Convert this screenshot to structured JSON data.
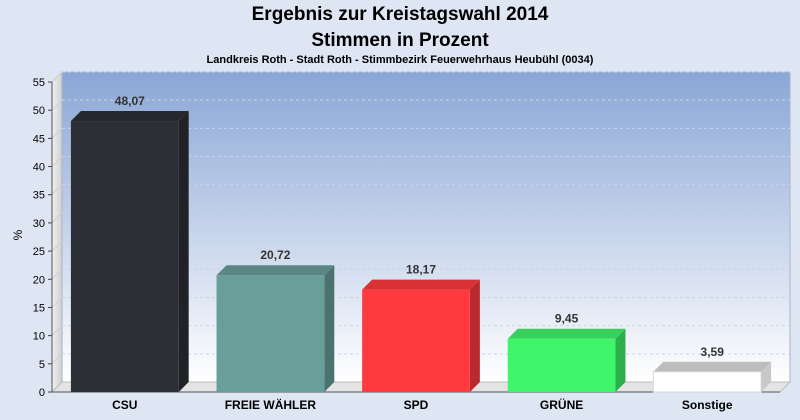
{
  "title": "Ergebnis zur Kreistagswahl 2014",
  "subtitle": "Stimmen in Prozent",
  "description": "Landkreis Roth - Stadt Roth - Stimmbezirk Feuerwehrhaus Heubühl (0034)",
  "chart_data": {
    "type": "bar",
    "categories": [
      "CSU",
      "FREIE WÄHLER",
      "SPD",
      "GRÜNE",
      "Sonstige"
    ],
    "values": [
      48.07,
      20.72,
      18.17,
      9.45,
      3.59
    ],
    "value_labels": [
      "48,07",
      "20,72",
      "18,17",
      "9,45",
      "3,59"
    ],
    "colors": [
      "#2d2f36",
      "#6a9e9b",
      "#ff3a3f",
      "#3ff56a",
      "#ffffff"
    ],
    "ylabel": "%",
    "ylim": [
      0,
      55
    ],
    "yticks": [
      0,
      5,
      10,
      15,
      20,
      25,
      30,
      35,
      40,
      45,
      50,
      55
    ],
    "grid": true,
    "background_top": "#8aa6d6",
    "background_bottom": "#ffffff"
  }
}
